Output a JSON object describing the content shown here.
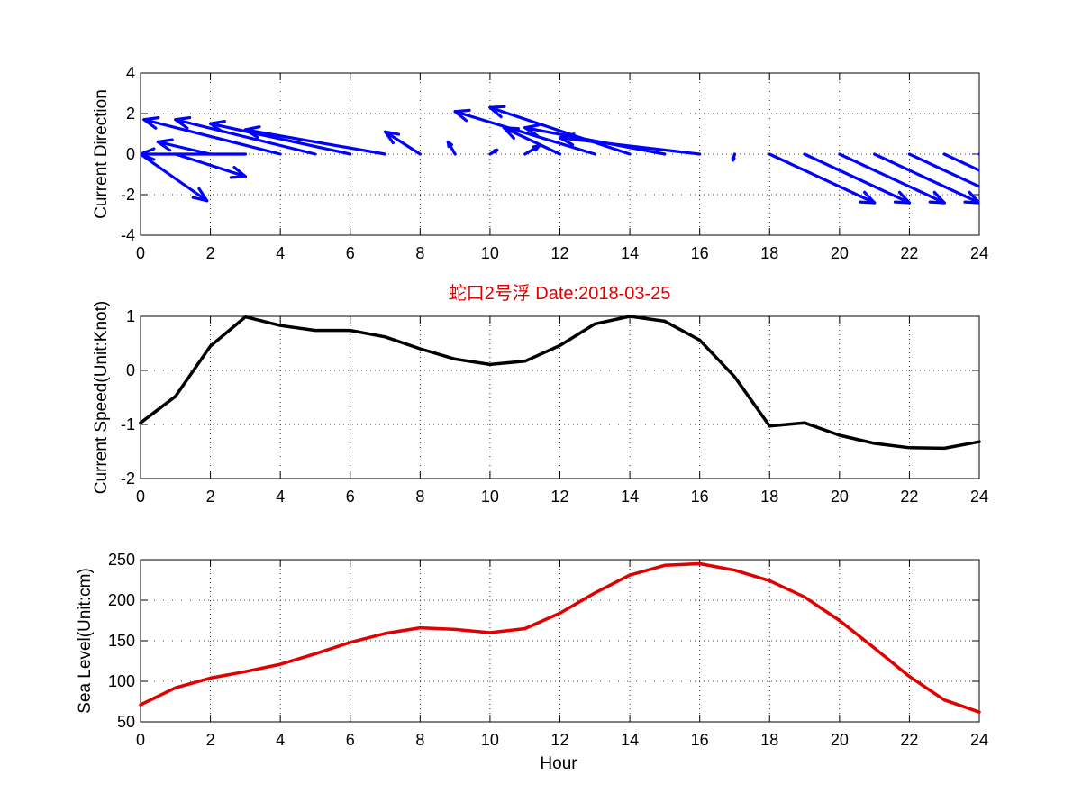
{
  "figure": {
    "title": "蛇口2号浮   Date:2018-03-25",
    "title_color": "#e00000"
  },
  "chart_data": [
    {
      "type": "quiver",
      "ylabel": "Current Direction",
      "xlabel": "",
      "xlim": [
        0,
        24
      ],
      "ylim": [
        -4,
        4
      ],
      "xticks": [
        0,
        2,
        4,
        6,
        8,
        10,
        12,
        14,
        16,
        18,
        20,
        22,
        24
      ],
      "yticks": [
        -4,
        -2,
        0,
        2,
        4
      ],
      "grid": true,
      "color": "#0000ff",
      "x": [
        0,
        1,
        2,
        3,
        4,
        5,
        6,
        7,
        8,
        9,
        10,
        11,
        12,
        13,
        14,
        15,
        16,
        17,
        18,
        19,
        20,
        21,
        22,
        23,
        24
      ],
      "u": [
        1.9,
        2.0,
        -1.5,
        -3.0,
        -3.9,
        -4.0,
        -4.0,
        -4.0,
        -1.0,
        -0.2,
        0.2,
        0.4,
        -1.6,
        -4.0,
        -4.0,
        -4.0,
        -4.0,
        -0.05,
        3.0,
        3.0,
        3.0,
        3.0,
        3.0,
        3.0,
        3.0
      ],
      "v": [
        -2.3,
        -1.1,
        0.6,
        0.0,
        1.7,
        1.7,
        1.5,
        1.2,
        1.1,
        0.6,
        0.2,
        0.4,
        1.3,
        2.1,
        2.3,
        1.3,
        0.8,
        -0.3,
        -2.4,
        -2.4,
        -2.4,
        -2.4,
        -2.4,
        -2.4,
        -2.4
      ]
    },
    {
      "type": "line",
      "ylabel": "Current Speed(Unit:Knot)",
      "xlabel": "",
      "xlim": [
        0,
        24
      ],
      "ylim": [
        -2,
        1
      ],
      "xticks": [
        0,
        2,
        4,
        6,
        8,
        10,
        12,
        14,
        16,
        18,
        20,
        22,
        24
      ],
      "yticks": [
        -2,
        -1,
        0,
        1
      ],
      "grid": true,
      "color": "#000000",
      "x": [
        0,
        1,
        2,
        3,
        4,
        5,
        6,
        7,
        8,
        9,
        10,
        11,
        12,
        13,
        14,
        15,
        16,
        17,
        18,
        19,
        20,
        21,
        22,
        23,
        24
      ],
      "y": [
        -0.97,
        -0.48,
        0.45,
        0.99,
        0.83,
        0.74,
        0.74,
        0.62,
        0.4,
        0.21,
        0.11,
        0.17,
        0.46,
        0.86,
        1.0,
        0.91,
        0.56,
        -0.12,
        -1.03,
        -0.97,
        -1.2,
        -1.35,
        -1.43,
        -1.44,
        -1.32
      ]
    },
    {
      "type": "line",
      "ylabel": "Sea Level(Unit:cm)",
      "xlabel": "Hour",
      "xlim": [
        0,
        24
      ],
      "ylim": [
        50,
        250
      ],
      "xticks": [
        0,
        2,
        4,
        6,
        8,
        10,
        12,
        14,
        16,
        18,
        20,
        22,
        24
      ],
      "yticks": [
        50,
        100,
        150,
        200,
        250
      ],
      "grid": true,
      "color": "#e00000",
      "x": [
        0,
        1,
        2,
        3,
        4,
        5,
        6,
        7,
        8,
        9,
        10,
        11,
        12,
        13,
        14,
        15,
        16,
        17,
        18,
        19,
        20,
        21,
        22,
        23,
        24
      ],
      "y": [
        71,
        92,
        104,
        112,
        121,
        134,
        148,
        159,
        166,
        164,
        160,
        165,
        184,
        209,
        231,
        243,
        245,
        237,
        224,
        204,
        175,
        141,
        106,
        77,
        62
      ]
    }
  ]
}
